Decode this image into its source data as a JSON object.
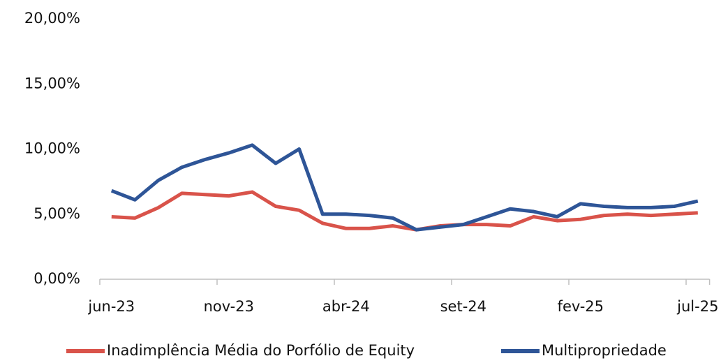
{
  "chart_data": {
    "type": "line",
    "categories": [
      "jun-23",
      null,
      null,
      null,
      null,
      "nov-23",
      null,
      null,
      null,
      null,
      "abr-24",
      null,
      null,
      null,
      null,
      "set-24",
      null,
      null,
      null,
      null,
      "fev-25",
      null,
      null,
      null,
      null,
      "jul-25"
    ],
    "series": [
      {
        "name": "Inadimplência Média do Porfólio de Equity",
        "color": "#d9534a",
        "values": [
          4.8,
          4.7,
          5.5,
          6.6,
          6.5,
          6.4,
          6.7,
          5.6,
          5.3,
          4.3,
          3.9,
          3.9,
          4.1,
          3.8,
          4.1,
          4.2,
          4.2,
          4.1,
          4.8,
          4.5,
          4.6,
          4.9,
          5.0,
          4.9,
          5.0,
          5.1
        ]
      },
      {
        "name": "Multipropriedade",
        "color": "#2e5597",
        "values": [
          6.8,
          6.1,
          7.6,
          8.6,
          9.2,
          9.7,
          10.3,
          8.9,
          10.0,
          5.0,
          5.0,
          4.9,
          4.7,
          3.8,
          4.0,
          4.2,
          4.8,
          5.4,
          5.2,
          4.8,
          5.8,
          5.6,
          5.5,
          5.5,
          5.6,
          6.0
        ]
      }
    ],
    "ylim": [
      0,
      20
    ],
    "yticks": [
      {
        "value": 0,
        "label": "0,00%"
      },
      {
        "value": 5,
        "label": "5,00%"
      },
      {
        "value": 10,
        "label": "10,00%"
      },
      {
        "value": 15,
        "label": "15,00%"
      },
      {
        "value": 20,
        "label": "20,00%"
      }
    ],
    "grid": false,
    "legend": "bottom"
  }
}
